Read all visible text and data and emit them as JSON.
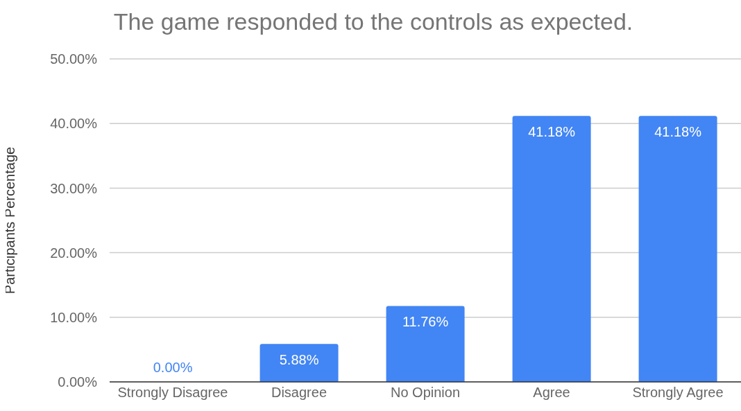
{
  "chart_data": {
    "type": "bar",
    "title": "The game responded to the controls as expected.",
    "ylabel": "Participants Percentage",
    "categories": [
      "Strongly Disagree",
      "Disagree",
      "No Opinion",
      "Agree",
      "Strongly Agree"
    ],
    "values": [
      0,
      5.88,
      11.76,
      41.18,
      41.18
    ],
    "value_labels": [
      "0.00%",
      "5.88%",
      "11.76%",
      "41.18%",
      "41.18%"
    ],
    "color": "#4285f4",
    "ylim": [
      0,
      50
    ],
    "yticks": [
      {
        "value": 0,
        "label": "0.00%"
      },
      {
        "value": 10,
        "label": "10.00%"
      },
      {
        "value": 20,
        "label": "20.00%"
      },
      {
        "value": 30,
        "label": "30.00%"
      },
      {
        "value": 40,
        "label": "40.00%"
      },
      {
        "value": 50,
        "label": "50.00%"
      }
    ],
    "grid": "y",
    "legend": false
  }
}
